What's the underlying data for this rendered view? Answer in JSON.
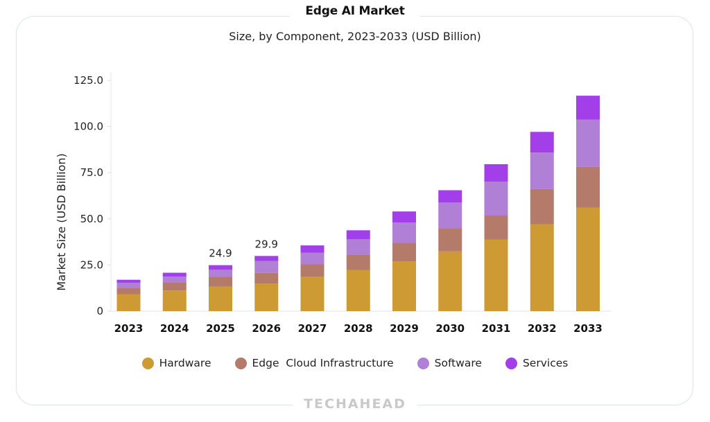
{
  "header": {
    "title": "Edge AI Market",
    "subtitle": "Size, by Component, 2023-2033 (USD Billion)"
  },
  "footer": {
    "brand": "TECHAHEAD"
  },
  "colors": {
    "Hardware": "#cd9a33",
    "Edge  Cloud Infrastructure": "#b57b6a",
    "Software": "#b07fd6",
    "Services": "#a23fe8",
    "frame": "#d8e3f3"
  },
  "chart_data": {
    "type": "bar",
    "stacked": true,
    "title": "Edge AI Market",
    "subtitle": "Size, by Component, 2023-2033 (USD Billion)",
    "xlabel": "",
    "ylabel": "Market Size (USD Billion)",
    "ylim": [
      0,
      125
    ],
    "yticks": [
      "0",
      "25.0",
      "50.0",
      "75.0",
      "100.0",
      "125.0"
    ],
    "ytick_values": [
      0,
      25,
      50,
      75,
      100,
      125
    ],
    "grid": false,
    "legend_position": "bottom",
    "categories": [
      "2023",
      "2024",
      "2025",
      "2026",
      "2027",
      "2028",
      "2029",
      "2030",
      "2031",
      "2032",
      "2033"
    ],
    "series": [
      {
        "name": "Hardware",
        "values": [
          9.2,
          11.2,
          13.2,
          15.0,
          18.5,
          22.2,
          27.0,
          32.4,
          38.7,
          47.1,
          56.1
        ]
      },
      {
        "name": "Edge  Cloud Infrastructure",
        "values": [
          3.5,
          4.2,
          5.4,
          5.7,
          7.0,
          8.5,
          10.0,
          12.6,
          13.1,
          19.0,
          22.1
        ]
      },
      {
        "name": "Software",
        "values": [
          2.7,
          3.3,
          3.8,
          6.5,
          6.1,
          8.2,
          11.0,
          13.8,
          18.4,
          19.8,
          25.5
        ]
      },
      {
        "name": "Services",
        "values": [
          1.6,
          2.1,
          2.5,
          2.7,
          4.0,
          4.9,
          6.0,
          6.7,
          9.4,
          11.2,
          13.0
        ]
      }
    ],
    "annotations": [
      {
        "category": "2025",
        "text": "24.9"
      },
      {
        "category": "2026",
        "text": "29.9"
      }
    ]
  }
}
